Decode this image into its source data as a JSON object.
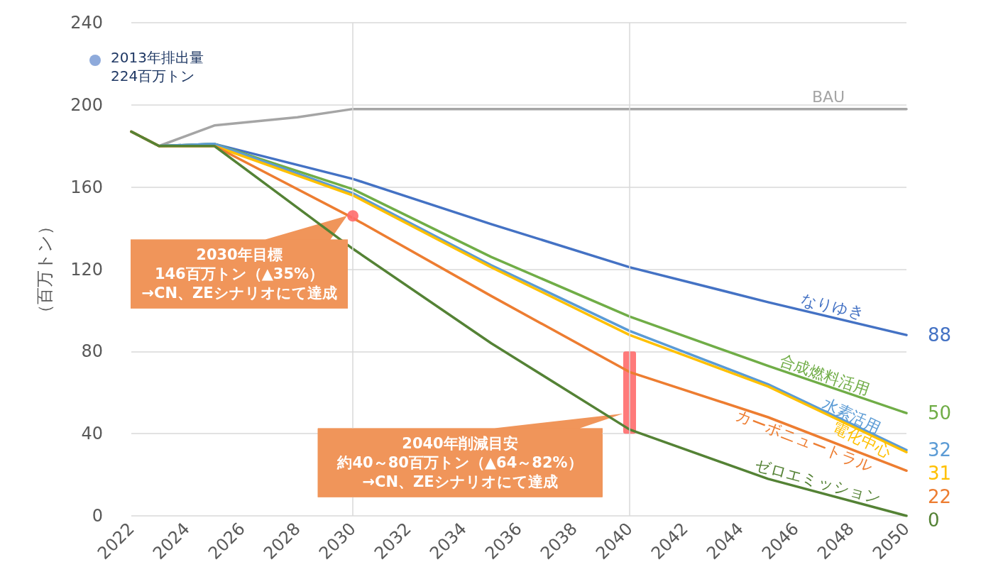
{
  "chart_data": {
    "type": "line",
    "ylabel": "（百万トン）",
    "xlim": [
      2022,
      2050
    ],
    "xticks": [
      2022,
      2024,
      2026,
      2028,
      2030,
      2032,
      2034,
      2036,
      2038,
      2040,
      2042,
      2044,
      2046,
      2048,
      2050
    ],
    "ylim": [
      0,
      240
    ],
    "yticks": [
      0,
      40,
      80,
      120,
      160,
      200,
      240
    ],
    "grid": "y",
    "legend": false,
    "marker": "none",
    "line_style": "solid",
    "series": [
      {
        "name": "BAU",
        "color": "#a5a5a5",
        "x": [
          2022,
          2023,
          2025,
          2028,
          2030,
          2040,
          2050
        ],
        "values": [
          187,
          180,
          190,
          194,
          198,
          198,
          198
        ]
      },
      {
        "name": "なりゆき",
        "color": "#4472c4",
        "x": [
          2022,
          2023,
          2025,
          2030,
          2035,
          2040,
          2045,
          2050
        ],
        "values": [
          187,
          180,
          181,
          164,
          142,
          121,
          104,
          88
        ],
        "value_labels": [
          null,
          null,
          null,
          null,
          null,
          null,
          null,
          "88"
        ]
      },
      {
        "name": "合成燃料活用",
        "color": "#70ad47",
        "x": [
          2022,
          2023,
          2025,
          2030,
          2035,
          2040,
          2045,
          2050
        ],
        "values": [
          187,
          180,
          181,
          159,
          126,
          97,
          73,
          50
        ],
        "value_labels": [
          null,
          null,
          null,
          null,
          null,
          null,
          null,
          "50"
        ]
      },
      {
        "name": "水素活用",
        "color": "#5b9bd5",
        "x": [
          2022,
          2023,
          2025,
          2030,
          2035,
          2040,
          2045,
          2050
        ],
        "values": [
          187,
          180,
          181,
          157,
          122,
          90,
          64,
          32
        ],
        "value_labels": [
          null,
          null,
          null,
          null,
          null,
          null,
          null,
          "32"
        ]
      },
      {
        "name": "電化中心",
        "color": "#ffc000",
        "x": [
          2022,
          2023,
          2025,
          2030,
          2035,
          2040,
          2045,
          2050
        ],
        "values": [
          187,
          180,
          180,
          156,
          121,
          88,
          63,
          31
        ],
        "value_labels": [
          null,
          null,
          null,
          null,
          null,
          null,
          null,
          "31"
        ]
      },
      {
        "name": "カーボニュートラル",
        "color": "#ed7d31",
        "x": [
          2022,
          2023,
          2025,
          2030,
          2035,
          2040,
          2045,
          2050
        ],
        "values": [
          187,
          180,
          180,
          145,
          107,
          70,
          48,
          22
        ],
        "value_labels": [
          null,
          null,
          null,
          null,
          null,
          null,
          null,
          "22"
        ]
      },
      {
        "name": "ゼロエミッション",
        "color": "#548235",
        "x": [
          2022,
          2023,
          2025,
          2030,
          2035,
          2040,
          2045,
          2050
        ],
        "values": [
          187,
          180,
          180,
          130,
          84,
          42,
          18,
          0
        ],
        "value_labels": [
          null,
          null,
          null,
          null,
          null,
          null,
          null,
          "0"
        ]
      },
      {
        "type": "scatter",
        "marker": "circle",
        "color": "#ff6b6b",
        "x": [
          2030
        ],
        "values": [
          146
        ]
      },
      {
        "type": "bar",
        "color": "#ff6b6b",
        "x": [
          2040
        ],
        "base": [
          40
        ],
        "values": [
          40
        ]
      }
    ],
    "ref_lines": [
      {
        "axis": "x",
        "value": 2030,
        "color": "#d9d9d9"
      },
      {
        "axis": "x",
        "value": 2040,
        "color": "#d9d9d9"
      }
    ],
    "annotations": [
      {
        "text": "2030年目標\n146百万トン（▲35%）\n→CN、ZEシナリオにて達成",
        "x": 2030,
        "y": 146
      },
      "2040年削減目安",
      "約40～80百万トン（▲64～82%）\n→CN、ZEシナリオにて達成",
      "2013年排出量\n224百万トン"
    ]
  }
}
